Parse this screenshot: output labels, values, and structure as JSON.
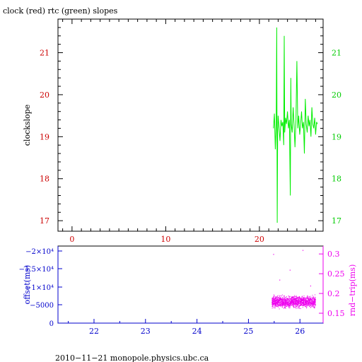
{
  "chart_data": [
    {
      "type": "line",
      "title": "clock (red) rtc (green) slopes",
      "ylabel": "clockslope",
      "xlim": [
        -1.5,
        26.8
      ],
      "ylim": [
        16.75,
        21.8
      ],
      "x_ticks": [
        0,
        10,
        20
      ],
      "y_ticks_left": [
        17,
        18,
        19,
        20,
        21
      ],
      "y_ticks_right": [
        17,
        18,
        19,
        20,
        21
      ],
      "colors": {
        "axis": "#000000",
        "x_tick_labels": "#cc0000",
        "left_tick_labels": "#cc0000",
        "right_tick_labels": "#00cc00",
        "series": "#00ee00"
      },
      "series": [
        {
          "color": "#00ee00",
          "x": [
            21.5,
            21.6,
            21.7,
            21.8,
            21.85,
            21.9,
            21.95,
            22.0,
            22.1,
            22.2,
            22.3,
            22.4,
            22.5,
            22.6,
            22.65,
            22.7,
            22.8,
            22.9,
            23.0,
            23.1,
            23.2,
            23.3,
            23.35,
            23.4,
            23.5,
            23.6,
            23.7,
            23.8,
            23.9,
            24.0,
            24.1,
            24.2,
            24.3,
            24.4,
            24.5,
            24.6,
            24.7,
            24.8,
            24.9,
            25.0,
            25.1,
            25.2,
            25.3,
            25.4,
            25.5,
            25.6,
            25.7,
            25.8,
            25.9,
            26.0,
            26.1,
            26.2
          ],
          "y": [
            19.2,
            19.55,
            18.7,
            19.4,
            21.6,
            16.95,
            19.1,
            19.5,
            19.2,
            18.9,
            19.4,
            19.25,
            19.35,
            18.8,
            21.4,
            19.1,
            19.45,
            19.3,
            19.6,
            19.2,
            19.4,
            17.6,
            20.4,
            19.3,
            19.1,
            19.7,
            19.3,
            18.75,
            19.4,
            20.8,
            19.2,
            19.5,
            19.05,
            19.3,
            19.6,
            19.2,
            19.35,
            18.6,
            19.9,
            19.3,
            19.1,
            19.5,
            19.25,
            19.4,
            19.0,
            19.7,
            19.3,
            19.2,
            19.45,
            19.05,
            19.35,
            19.3
          ]
        }
      ]
    },
    {
      "type": "scatter",
      "xlim": [
        21.3,
        26.45
      ],
      "x_ticks": [
        22,
        23,
        24,
        25,
        26
      ],
      "y_ticks_left": [
        "0",
        "−5000",
        "−1×10⁴",
        "−1.5×10⁴",
        "−2×10⁴"
      ],
      "y_ticks_right": [
        "0.15",
        "0.2",
        "0.25",
        "0.3"
      ],
      "ylim_right": [
        0.125,
        0.32
      ],
      "ylabel_left": "offset(ms)",
      "ylabel_right": "rnd−trip(ms)",
      "colors": {
        "left_axis": "#0000cc",
        "right_axis": "#ee00ee",
        "points": "#ee00ee"
      },
      "series": [
        {
          "color": "#ee00ee",
          "x_range": [
            25.45,
            26.3
          ],
          "y_band": [
            0.16,
            0.2
          ],
          "y_center": 0.183,
          "outliers": [
            [
              25.48,
              0.3
            ],
            [
              25.8,
              0.26
            ],
            [
              26.05,
              0.31
            ],
            [
              25.6,
              0.235
            ],
            [
              26.2,
              0.22
            ]
          ]
        }
      ]
    }
  ],
  "footer": "2010−11−21 monopole.physics.ubc.ca"
}
